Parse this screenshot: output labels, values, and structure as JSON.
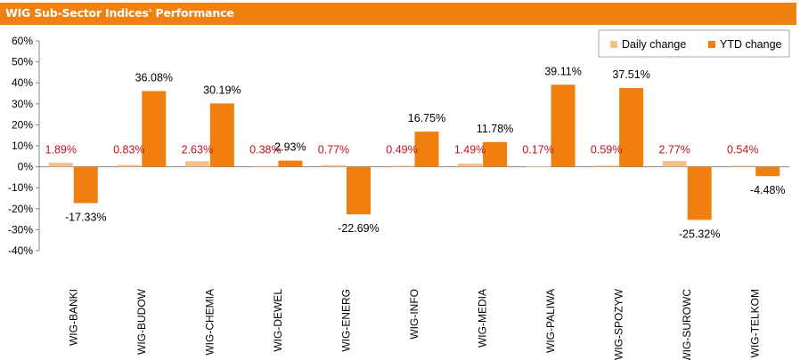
{
  "header": {
    "title": "WIG Sub-Sector Indices' Performance"
  },
  "chart_data": {
    "type": "bar",
    "title": "WIG Sub-Sector Indices' Performance",
    "categories": [
      "WIG-BANKI",
      "WIG-BUDOW",
      "WIG-CHEMIA",
      "WIG-DEWEL",
      "WIG-ENERG",
      "WIG-INFO",
      "WIG-MEDIA",
      "WIG-PALIWA",
      "WIG-SPOZYW",
      "WIG-SUROWC",
      "WIG-TELKOM"
    ],
    "series": [
      {
        "name": "Daily change",
        "color": "#f5c08c",
        "values": [
          1.89,
          0.83,
          2.63,
          0.38,
          0.77,
          0.49,
          1.49,
          0.17,
          0.59,
          2.77,
          0.54
        ],
        "labels": [
          "1.89%",
          "0.83%",
          "2.63%",
          "0.38%",
          "0.77%",
          "0.49%",
          "1.49%",
          "0.17%",
          "0.59%",
          "2.77%",
          "0.54%"
        ]
      },
      {
        "name": "YTD change",
        "color": "#f07f10",
        "values": [
          -17.33,
          36.08,
          30.19,
          2.93,
          -22.69,
          16.75,
          11.78,
          39.11,
          37.51,
          -25.32,
          -4.48
        ],
        "labels": [
          "-17.33%",
          "36.08%",
          "30.19%",
          "2.93%",
          "-22.69%",
          "16.75%",
          "11.78%",
          "39.11%",
          "37.51%",
          "-25.32%",
          "-4.48%"
        ]
      }
    ],
    "ylim": [
      -40,
      60
    ],
    "yticks": [
      "60%",
      "50%",
      "40%",
      "30%",
      "20%",
      "10%",
      "0%",
      "-10%",
      "-20%",
      "-30%",
      "-40%"
    ],
    "legend": "top-right",
    "grid": false
  }
}
